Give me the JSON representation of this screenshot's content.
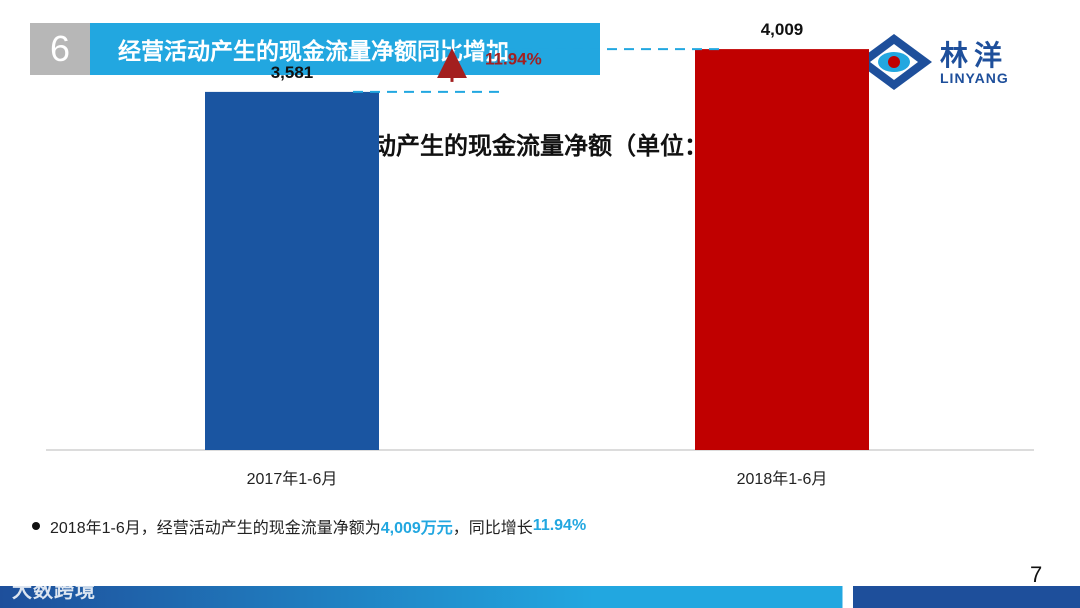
{
  "header": {
    "number": "6",
    "title": "经营活动产生的现金流量净额同比增加"
  },
  "logo": {
    "cn": "林洋",
    "en": "LINYANG"
  },
  "colors": {
    "accent": "#22a7e0",
    "bar_2017": "#1a55a1",
    "bar_2018": "#c00000",
    "arrow": "#a31f1f"
  },
  "chart_data": {
    "type": "bar",
    "title": "经营活动产生的现金流量净额（单位：万元）",
    "categories": [
      "2017年1-6月",
      "2018年1-6月"
    ],
    "values": [
      3581,
      4009
    ],
    "value_labels": [
      "3,581",
      "4,009"
    ],
    "ylim": [
      0,
      4500
    ],
    "grid": false,
    "annotation": {
      "label": "11.94%"
    }
  },
  "note": {
    "prefix": "2018年1-6月，经营活动产生的现金流量净额为",
    "highlight1": "4,009万元",
    "middle": "，同比增长",
    "highlight2": "11.94%"
  },
  "page_number": "7",
  "watermark": "大数跨境"
}
